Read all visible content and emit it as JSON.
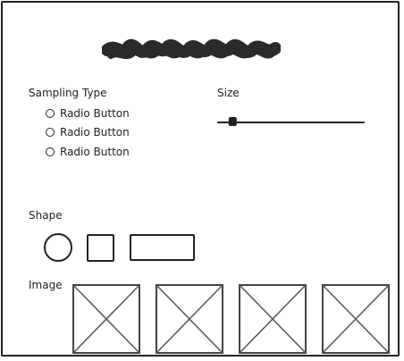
{
  "title_scribble": "scribble-text-placeholder",
  "sampling": {
    "label": "Sampling Type",
    "options": [
      {
        "label": "Radio Button",
        "selected": false
      },
      {
        "label": "Radio Button",
        "selected": false
      },
      {
        "label": "Radio Button",
        "selected": false
      }
    ]
  },
  "size": {
    "label": "Size",
    "value_fraction": 0.1
  },
  "shape": {
    "label": "Shape",
    "options": [
      "circle",
      "square",
      "rectangle"
    ]
  },
  "image": {
    "label": "Image",
    "tiles": [
      "image-placeholder-icon",
      "image-placeholder-icon",
      "image-placeholder-icon",
      "image-placeholder-icon"
    ]
  },
  "colors": {
    "ink": "#222222",
    "placeholder_stroke": "#444444",
    "scribble": "#2a2a2a"
  }
}
